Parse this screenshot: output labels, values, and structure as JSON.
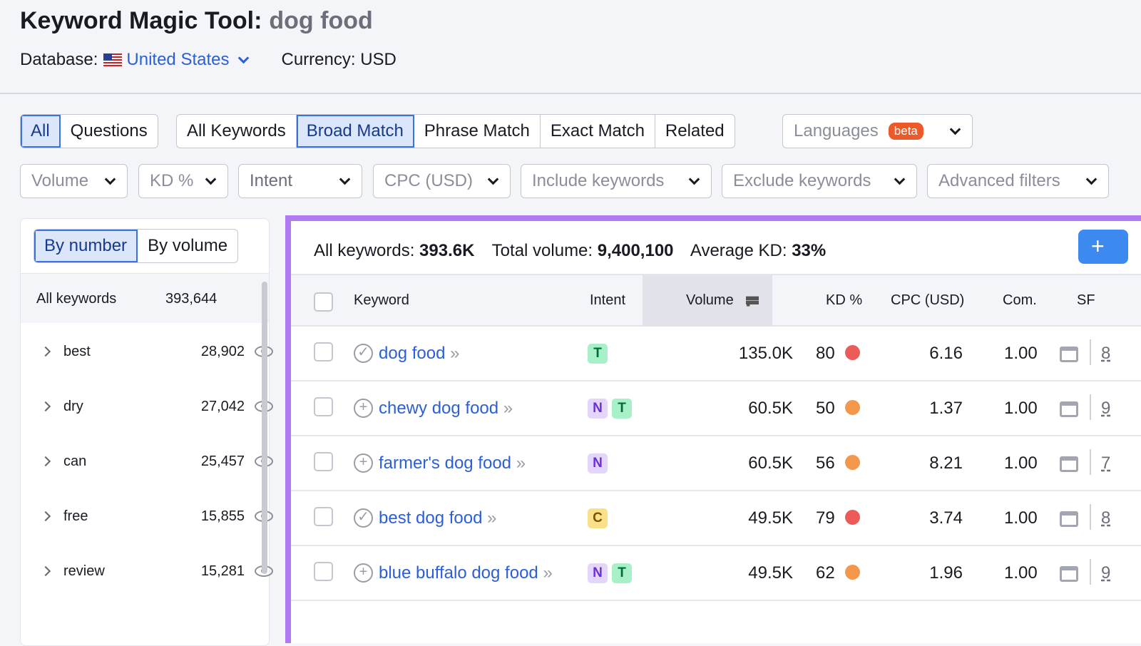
{
  "header": {
    "title": "Keyword Magic Tool:",
    "query": "dog food",
    "database_label": "Database:",
    "database": "United States",
    "currency": "Currency: USD"
  },
  "tabs1": [
    "All",
    "Questions"
  ],
  "tabs2": [
    "All Keywords",
    "Broad Match",
    "Phrase Match",
    "Exact Match",
    "Related"
  ],
  "languages": {
    "label": "Languages",
    "badge": "beta"
  },
  "filters": [
    "Volume",
    "KD %",
    "Intent",
    "CPC (USD)",
    "Include keywords",
    "Exclude keywords",
    "Advanced filters"
  ],
  "sidebar": {
    "toggle": [
      "By number",
      "By volume"
    ],
    "all_label": "All keywords",
    "all_count": "393,644",
    "groups": [
      {
        "label": "best",
        "count": "28,902"
      },
      {
        "label": "dry",
        "count": "27,042"
      },
      {
        "label": "can",
        "count": "25,457"
      },
      {
        "label": "free",
        "count": "15,855"
      },
      {
        "label": "review",
        "count": "15,281"
      }
    ]
  },
  "stats": {
    "all_label": "All keywords:",
    "all": "393.6K",
    "vol_label": "Total volume:",
    "vol": "9,400,100",
    "kd_label": "Average KD:",
    "kd": "33%",
    "add": "+"
  },
  "columns": [
    "Keyword",
    "Intent",
    "Volume",
    "KD %",
    "CPC (USD)",
    "Com.",
    "SF"
  ],
  "colors": {
    "accent": "#3a73e0",
    "hard": "#ec5a5a",
    "medium": "#f3974b",
    "highlight": "#b07af2"
  },
  "rows": [
    {
      "keyword": "dog food",
      "status": "added",
      "intent": [
        "T"
      ],
      "volume": "135.0K",
      "kd": "80",
      "kd_level": "hard",
      "cpc": "6.16",
      "com": "1.00",
      "sf": "8"
    },
    {
      "keyword": "chewy dog food",
      "status": "add",
      "intent": [
        "N",
        "T"
      ],
      "volume": "60.5K",
      "kd": "50",
      "kd_level": "medium",
      "cpc": "1.37",
      "com": "1.00",
      "sf": "9"
    },
    {
      "keyword": "farmer's dog food",
      "status": "add",
      "intent": [
        "N"
      ],
      "volume": "60.5K",
      "kd": "56",
      "kd_level": "medium",
      "cpc": "8.21",
      "com": "1.00",
      "sf": "7"
    },
    {
      "keyword": "best dog food",
      "status": "added",
      "intent": [
        "C"
      ],
      "volume": "49.5K",
      "kd": "79",
      "kd_level": "hard",
      "cpc": "3.74",
      "com": "1.00",
      "sf": "8"
    },
    {
      "keyword": "blue buffalo dog food",
      "status": "add",
      "intent": [
        "N",
        "T"
      ],
      "volume": "49.5K",
      "kd": "62",
      "kd_level": "medium",
      "cpc": "1.96",
      "com": "1.00",
      "sf": "9"
    }
  ]
}
